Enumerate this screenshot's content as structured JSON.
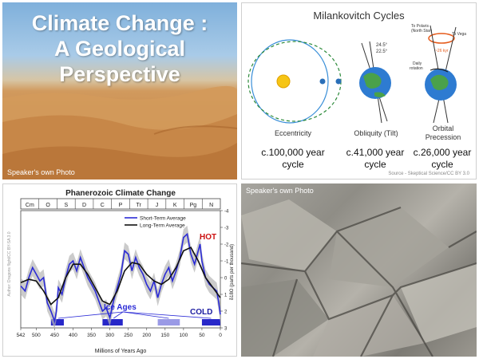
{
  "slide": {
    "title_line1": "Climate Change :",
    "title_line2": "A Geological",
    "title_line3": "Perspective",
    "photo_credit_1": "Speaker's own Photo",
    "photo_credit_2": "Speaker's own Photo"
  },
  "milankovitch": {
    "title": "Milankovitch Cycles",
    "eccentricity_label": "Eccentricity",
    "obliquity_label": "Obliquity (Tilt)",
    "precession_label_1": "Orbital",
    "precession_label_2": "Precession",
    "ecc_cycle_1": "c.100,000 year",
    "ecc_cycle_2": "cycle",
    "obl_cycle_1": "c.41,000 year",
    "obl_cycle_2": "cycle",
    "pre_cycle_1": "c.26,000 year",
    "pre_cycle_2": "cycle",
    "angle_1": "24.5°",
    "angle_2": "22.5°",
    "polaris": "To Polaris",
    "north_star": "(North Star)",
    "vega": "To Vega",
    "kyr": "~26 kyr",
    "daily_1": "Daily",
    "daily_2": "rotation",
    "source": "Source - Skeptical Science/CC BY 3.0"
  },
  "chart_data": {
    "type": "line",
    "title": "Phanerozoic Climate Change",
    "xlabel": "Millions of Years Ago",
    "ylabel": "δ18O (parts per thousand)",
    "xlim": [
      542,
      0
    ],
    "ylim": [
      3,
      -4
    ],
    "x_ticks": [
      542,
      500,
      450,
      400,
      350,
      300,
      250,
      200,
      150,
      100,
      50,
      0
    ],
    "y_ticks": [
      -4,
      -3,
      -2,
      -1,
      0,
      1,
      2,
      3
    ],
    "periods": [
      "Cm",
      "O",
      "S",
      "D",
      "C",
      "P",
      "Tr",
      "J",
      "K",
      "Pg",
      "N"
    ],
    "legend": [
      "Short-Term Average",
      "Long-Term Average"
    ],
    "legend_position": "top-right",
    "annotations": {
      "hot": "HOT",
      "cold": "COLD",
      "ice_ages": "Ice Ages",
      "author": "Author: Dragons flight/CC BY-SA 3.0"
    },
    "ice_age_bars": [
      [
        460,
        425
      ],
      [
        320,
        265
      ],
      [
        170,
        110
      ],
      [
        50,
        0
      ]
    ],
    "series": [
      {
        "name": "Short-Term Average",
        "x": [
          542,
          530,
          520,
          510,
          500,
          490,
          480,
          470,
          460,
          450,
          445,
          440,
          430,
          420,
          410,
          400,
          390,
          380,
          370,
          360,
          350,
          340,
          330,
          320,
          310,
          300,
          290,
          280,
          270,
          260,
          250,
          240,
          230,
          220,
          210,
          200,
          190,
          180,
          170,
          160,
          150,
          140,
          130,
          120,
          110,
          100,
          90,
          80,
          70,
          60,
          55,
          50,
          40,
          30,
          20,
          10,
          5,
          0
        ],
        "values": [
          0.5,
          0.8,
          0.0,
          -0.6,
          -0.2,
          0.2,
          0.0,
          1.5,
          2.0,
          2.6,
          2.0,
          0.6,
          1.0,
          0.0,
          -0.8,
          -1.0,
          -0.4,
          -1.2,
          -0.6,
          0.0,
          0.4,
          0.8,
          1.4,
          2.0,
          1.8,
          2.4,
          1.4,
          0.6,
          -0.2,
          -1.6,
          -1.4,
          -0.4,
          -1.2,
          -0.6,
          -0.2,
          0.4,
          0.8,
          0.2,
          1.2,
          0.4,
          -0.2,
          -0.6,
          0.2,
          -0.4,
          -1.2,
          -2.4,
          -2.6,
          -1.4,
          -0.8,
          -1.6,
          -2.0,
          -1.0,
          0.0,
          0.4,
          0.6,
          0.8,
          1.4,
          2.2
        ]
      },
      {
        "name": "Long-Term Average",
        "x": [
          542,
          520,
          500,
          480,
          460,
          440,
          420,
          400,
          380,
          360,
          340,
          320,
          300,
          280,
          260,
          240,
          220,
          200,
          180,
          160,
          140,
          120,
          100,
          80,
          60,
          40,
          20,
          0
        ],
        "values": [
          0.3,
          0.1,
          0.2,
          0.8,
          1.6,
          1.2,
          0.0,
          -0.8,
          -0.8,
          -0.2,
          0.6,
          1.4,
          1.6,
          0.8,
          -0.4,
          -0.9,
          -0.8,
          -0.2,
          0.2,
          0.4,
          0.1,
          -0.6,
          -1.6,
          -1.8,
          -1.0,
          0.0,
          0.6,
          1.2
        ]
      }
    ],
    "grid": false
  },
  "colors": {
    "short_term": "#2b2bd6",
    "long_term": "#111111",
    "hot": "#cc1111",
    "cold": "#1a1aa0",
    "ice_age_bar": "#2727c9"
  }
}
